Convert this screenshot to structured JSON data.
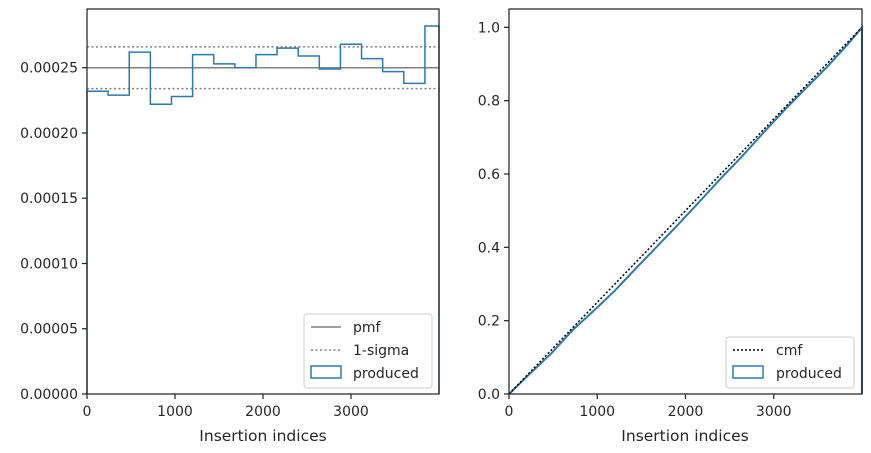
{
  "chart_data": [
    {
      "type": "histogram",
      "xlabel": "Insertion indices",
      "ylabel": "",
      "xlim": [
        0,
        4000
      ],
      "ylim": [
        0,
        0.000295
      ],
      "xticks": [
        0,
        1000,
        2000,
        3000
      ],
      "xtick_labels": [
        "0",
        "1000",
        "2000",
        "3000"
      ],
      "yticks": [
        0,
        5e-05,
        0.0001,
        0.00015,
        0.0002,
        0.00025
      ],
      "ytick_labels": [
        "0.00000",
        "0.00005",
        "0.00010",
        "0.00015",
        "0.00020",
        "0.00025"
      ],
      "legend_position": "lower right",
      "legend": [
        "pmf",
        "1-sigma",
        "produced"
      ],
      "pmf": 0.00025,
      "sigma_band": [
        0.000234,
        0.000266
      ],
      "produced": {
        "bin_edges": [
          0,
          240,
          480,
          720,
          960,
          1200,
          1440,
          1680,
          1920,
          2160,
          2400,
          2640,
          2880,
          3120,
          3360,
          3600,
          3840,
          4000
        ],
        "values": [
          0.000232,
          0.000229,
          0.000262,
          0.000222,
          0.000228,
          0.00026,
          0.000253,
          0.00025,
          0.00026,
          0.000265,
          0.000259,
          0.000249,
          0.000268,
          0.000257,
          0.000247,
          0.000238,
          0.000282
        ]
      },
      "colors": {
        "pmf": "#808080",
        "sigma": "#808080",
        "produced": "#2a7ab0"
      }
    },
    {
      "type": "line",
      "xlabel": "Insertion indices",
      "ylabel": "",
      "xlim": [
        0,
        4000
      ],
      "ylim": [
        0,
        1.05
      ],
      "xticks": [
        0,
        1000,
        2000,
        3000
      ],
      "xtick_labels": [
        "0",
        "1000",
        "2000",
        "3000"
      ],
      "yticks": [
        0,
        0.2,
        0.4,
        0.6,
        0.8,
        1.0
      ],
      "ytick_labels": [
        "0.0",
        "0.2",
        "0.4",
        "0.6",
        "0.8",
        "1.0"
      ],
      "legend_position": "lower right",
      "legend": [
        "cmf",
        "produced"
      ],
      "cmf": {
        "x": [
          0,
          4000
        ],
        "y": [
          0,
          1.0
        ]
      },
      "produced": {
        "x": [
          0,
          240,
          480,
          720,
          960,
          1200,
          1440,
          1680,
          1920,
          2160,
          2400,
          2640,
          2880,
          3120,
          3360,
          3600,
          3840,
          4000
        ],
        "y": [
          0,
          0.056,
          0.111,
          0.174,
          0.227,
          0.282,
          0.343,
          0.403,
          0.463,
          0.525,
          0.588,
          0.648,
          0.712,
          0.774,
          0.833,
          0.891,
          0.954,
          1.0
        ]
      },
      "colors": {
        "cmf": "#000000",
        "produced": "#2a7ab0"
      }
    }
  ]
}
